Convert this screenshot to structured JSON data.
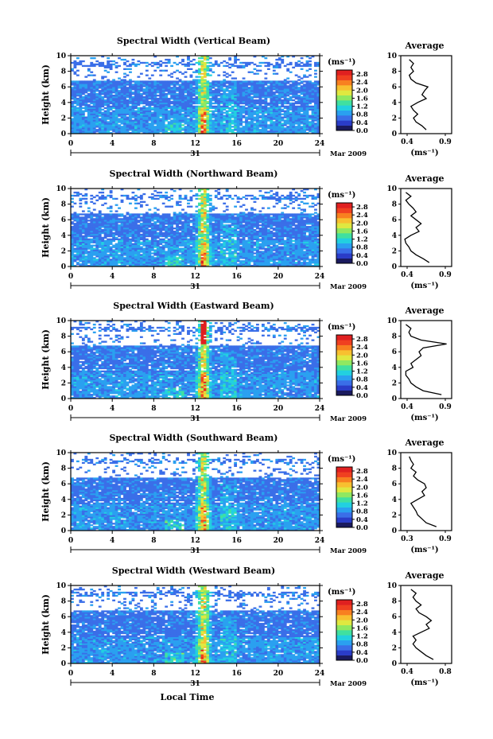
{
  "figure": {
    "xlabel": "Local Time",
    "ylabel": "Height (km)",
    "date_label": "Mar 2009",
    "day_label": "31"
  },
  "colorbar": {
    "unit": "(ms⁻¹)",
    "ticks": [
      "0.0",
      "0.4",
      "0.8",
      "1.2",
      "1.6",
      "2.0",
      "2.4",
      "2.8"
    ],
    "range": [
      0,
      3.0
    ],
    "colors": [
      "#1a1a5e",
      "#2a3cc8",
      "#3a6ee8",
      "#2aa0f0",
      "#22d0e0",
      "#40e0a0",
      "#90e860",
      "#e0e840",
      "#f8c030",
      "#f88020",
      "#f04020",
      "#e02020"
    ]
  },
  "chart_data": [
    {
      "type": "heatmap",
      "title": "Spectral Width (Vertical Beam)",
      "xlim": [
        0,
        24
      ],
      "xticks": [
        0,
        4,
        8,
        12,
        16,
        20,
        24
      ],
      "ylim": [
        0,
        10
      ],
      "yticks": [
        0,
        2,
        4,
        6,
        8,
        10
      ],
      "zlim": [
        0,
        3.0
      ],
      "x_unit": "hour",
      "average_profile": {
        "title": "Average",
        "xlabel": "(ms⁻¹)",
        "xlim": [
          0.3,
          0.9
        ],
        "xticks": [
          "0.4",
          "0.9"
        ],
        "height": [
          0.5,
          1,
          1.5,
          2,
          2.5,
          3,
          3.5,
          4,
          4.5,
          5,
          5.5,
          6,
          6.5,
          7,
          7.5,
          8,
          8.5,
          9,
          9.5
        ],
        "value": [
          0.6,
          0.55,
          0.48,
          0.45,
          0.5,
          0.45,
          0.42,
          0.5,
          0.6,
          0.55,
          0.58,
          0.62,
          0.48,
          0.42,
          0.4,
          0.45,
          0.42,
          0.45,
          0.4
        ]
      }
    },
    {
      "type": "heatmap",
      "title": "Spectral Width (Northward Beam)",
      "xlim": [
        0,
        24
      ],
      "xticks": [
        0,
        4,
        8,
        12,
        16,
        20,
        24
      ],
      "ylim": [
        0,
        10
      ],
      "yticks": [
        0,
        2,
        4,
        6,
        8,
        10
      ],
      "zlim": [
        0,
        3.0
      ],
      "x_unit": "hour",
      "average_profile": {
        "title": "Average",
        "xlabel": "(ms⁻¹)",
        "xlim": [
          0.4,
          0.9
        ],
        "xticks": [
          "0.4",
          "0.9"
        ],
        "height": [
          0.5,
          1,
          1.5,
          2,
          2.5,
          3,
          3.5,
          4,
          4.5,
          5,
          5.5,
          6,
          6.5,
          7,
          7.5,
          8,
          8.5,
          9,
          9.5
        ],
        "value": [
          0.68,
          0.62,
          0.55,
          0.5,
          0.48,
          0.45,
          0.44,
          0.5,
          0.58,
          0.55,
          0.6,
          0.55,
          0.5,
          0.55,
          0.52,
          0.48,
          0.45,
          0.5,
          0.45
        ]
      }
    },
    {
      "type": "heatmap",
      "title": "Spectral Width (Eastward Beam)",
      "xlim": [
        0,
        24
      ],
      "xticks": [
        0,
        4,
        8,
        12,
        16,
        20,
        24
      ],
      "ylim": [
        0,
        10
      ],
      "yticks": [
        0,
        2,
        4,
        6,
        8,
        10
      ],
      "zlim": [
        0,
        3.0
      ],
      "x_unit": "hour",
      "average_profile": {
        "title": "Average",
        "xlabel": "(ms⁻¹)",
        "xlim": [
          0.4,
          0.9
        ],
        "xticks": [
          "0.4",
          "0.9"
        ],
        "height": [
          0.5,
          1,
          1.5,
          2,
          2.5,
          3,
          3.5,
          4,
          4.5,
          5,
          5.5,
          6,
          6.5,
          7,
          7.5,
          8,
          8.5,
          9,
          9.5
        ],
        "value": [
          0.8,
          0.62,
          0.55,
          0.5,
          0.48,
          0.45,
          0.45,
          0.52,
          0.5,
          0.55,
          0.6,
          0.58,
          0.62,
          0.85,
          0.6,
          0.5,
          0.48,
          0.5,
          0.45
        ]
      }
    },
    {
      "type": "heatmap",
      "title": "Spectral Width (Southward Beam)",
      "xlim": [
        0,
        24
      ],
      "xticks": [
        0,
        4,
        8,
        12,
        16,
        20,
        24
      ],
      "ylim": [
        0,
        10
      ],
      "yticks": [
        0,
        2,
        4,
        6,
        8,
        10
      ],
      "zlim": [
        0,
        3.0
      ],
      "x_unit": "hour",
      "average_profile": {
        "title": "Average",
        "xlabel": "(ms⁻¹)",
        "xlim": [
          0.3,
          0.9
        ],
        "xticks": [
          "0.3",
          "0.9"
        ],
        "height": [
          0.5,
          1,
          1.5,
          2,
          2.5,
          3,
          3.5,
          4,
          4.5,
          5,
          5.5,
          6,
          6.5,
          7,
          7.5,
          8,
          8.5,
          9,
          9.5
        ],
        "value": [
          0.72,
          0.6,
          0.55,
          0.5,
          0.48,
          0.45,
          0.42,
          0.5,
          0.58,
          0.55,
          0.6,
          0.58,
          0.5,
          0.45,
          0.48,
          0.42,
          0.45,
          0.42,
          0.4
        ]
      }
    },
    {
      "type": "heatmap",
      "title": "Spectral Width (Westward Beam)",
      "xlim": [
        0,
        24
      ],
      "xticks": [
        0,
        4,
        8,
        12,
        16,
        20,
        24
      ],
      "ylim": [
        0,
        10
      ],
      "yticks": [
        0,
        2,
        4,
        6,
        8,
        10
      ],
      "zlim": [
        0,
        3.0
      ],
      "x_unit": "hour",
      "average_profile": {
        "title": "Average",
        "xlabel": "(ms⁻¹)",
        "xlim": [
          0.3,
          0.8
        ],
        "xticks": [
          "0.4",
          "0.8"
        ],
        "height": [
          0.5,
          1,
          1.5,
          2,
          2.5,
          3,
          3.5,
          4,
          4.5,
          5,
          5.5,
          6,
          6.5,
          7,
          7.5,
          8,
          8.5,
          9,
          9.5
        ],
        "value": [
          0.62,
          0.55,
          0.5,
          0.45,
          0.42,
          0.45,
          0.42,
          0.5,
          0.58,
          0.55,
          0.6,
          0.55,
          0.48,
          0.45,
          0.5,
          0.45,
          0.42,
          0.45,
          0.4
        ]
      }
    }
  ]
}
